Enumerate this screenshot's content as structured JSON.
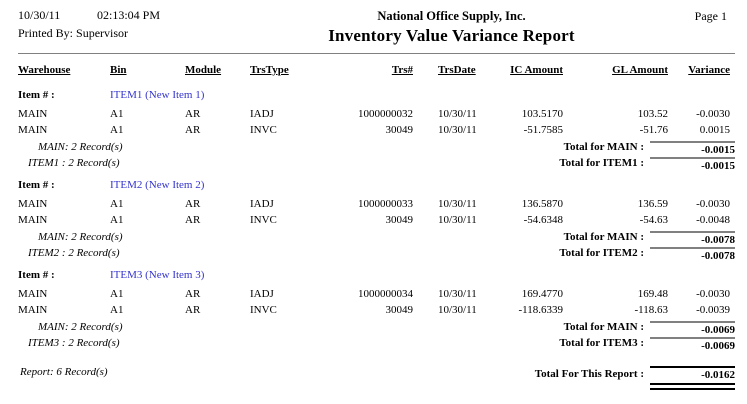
{
  "colors": {
    "item_link": "#3333CC",
    "separator_gray": "#808080",
    "text": "#000000"
  },
  "header": {
    "date": "10/30/11",
    "time": "02:13:04 PM",
    "printed_by_label": "Printed By:",
    "printed_by_value": "Supervisor",
    "company": "National Office Supply, Inc.",
    "report_title": "Inventory Value Variance Report",
    "page_label": "Page 1"
  },
  "table": {
    "headers": {
      "warehouse": "Warehouse",
      "bin": "Bin",
      "module": "Module",
      "trstype": "TrsType",
      "trsnum": "Trs#",
      "trsdate": "TrsDate",
      "ic_amount": "IC Amount",
      "gl_amount": "GL Amount",
      "variance": "Variance"
    },
    "item_label": "Item # :",
    "groups": [
      {
        "item": "ITEM1 (New Item 1)",
        "rows": [
          {
            "warehouse": "MAIN",
            "bin": "A1",
            "module": "AR",
            "trstype": "IADJ",
            "trsnum": "1000000032",
            "trsdate": "10/30/11",
            "ic": "103.5170",
            "gl": "103.52",
            "variance": "-0.0030"
          },
          {
            "warehouse": "MAIN",
            "bin": "A1",
            "module": "AR",
            "trstype": "INVC",
            "trsnum": "30049",
            "trsdate": "10/30/11",
            "ic": "-51.7585",
            "gl": "-51.76",
            "variance": "0.0015"
          }
        ],
        "warehouse_summary": "MAIN: 2 Record(s)",
        "warehouse_total_label": "Total for MAIN :",
        "warehouse_total": "-0.0015",
        "item_summary": "ITEM1 : 2 Record(s)",
        "item_total_label": "Total for ITEM1 :",
        "item_total": "-0.0015"
      },
      {
        "item": "ITEM2 (New Item 2)",
        "rows": [
          {
            "warehouse": "MAIN",
            "bin": "A1",
            "module": "AR",
            "trstype": "IADJ",
            "trsnum": "1000000033",
            "trsdate": "10/30/11",
            "ic": "136.5870",
            "gl": "136.59",
            "variance": "-0.0030"
          },
          {
            "warehouse": "MAIN",
            "bin": "A1",
            "module": "AR",
            "trstype": "INVC",
            "trsnum": "30049",
            "trsdate": "10/30/11",
            "ic": "-54.6348",
            "gl": "-54.63",
            "variance": "-0.0048"
          }
        ],
        "warehouse_summary": "MAIN: 2 Record(s)",
        "warehouse_total_label": "Total for MAIN :",
        "warehouse_total": "-0.0078",
        "item_summary": "ITEM2 : 2 Record(s)",
        "item_total_label": "Total for ITEM2 :",
        "item_total": "-0.0078"
      },
      {
        "item": "ITEM3 (New Item 3)",
        "rows": [
          {
            "warehouse": "MAIN",
            "bin": "A1",
            "module": "AR",
            "trstype": "IADJ",
            "trsnum": "1000000034",
            "trsdate": "10/30/11",
            "ic": "169.4770",
            "gl": "169.48",
            "variance": "-0.0030"
          },
          {
            "warehouse": "MAIN",
            "bin": "A1",
            "module": "AR",
            "trstype": "INVC",
            "trsnum": "30049",
            "trsdate": "10/30/11",
            "ic": "-118.6339",
            "gl": "-118.63",
            "variance": "-0.0039"
          }
        ],
        "warehouse_summary": "MAIN: 2 Record(s)",
        "warehouse_total_label": "Total for MAIN :",
        "warehouse_total": "-0.0069",
        "item_summary": "ITEM3 : 2 Record(s)",
        "item_total_label": "Total for ITEM3 :",
        "item_total": "-0.0069"
      }
    ],
    "report_summary": "Report: 6 Record(s)",
    "report_total_label": "Total For This Report :",
    "report_total": "-0.0162"
  }
}
